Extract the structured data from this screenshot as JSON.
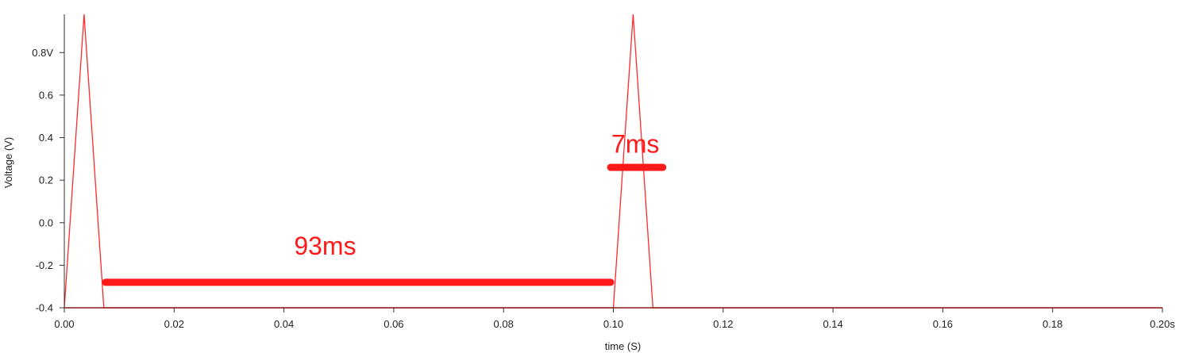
{
  "chart_data": {
    "type": "line",
    "title": "",
    "xlabel": "time (S)",
    "ylabel": "Voltage (V)",
    "xlim": [
      0.0,
      0.2
    ],
    "ylim": [
      -0.4,
      0.98
    ],
    "x_ticks": [
      {
        "value": 0.0,
        "label": "0.00"
      },
      {
        "value": 0.02,
        "label": "0.02"
      },
      {
        "value": 0.04,
        "label": "0.04"
      },
      {
        "value": 0.06,
        "label": "0.06"
      },
      {
        "value": 0.08,
        "label": "0.08"
      },
      {
        "value": 0.1,
        "label": "0.10"
      },
      {
        "value": 0.12,
        "label": "0.12"
      },
      {
        "value": 0.14,
        "label": "0.14"
      },
      {
        "value": 0.16,
        "label": "0.16"
      },
      {
        "value": 0.18,
        "label": "0.18"
      },
      {
        "value": 0.2,
        "label": "0.20s"
      }
    ],
    "y_ticks": [
      {
        "value": -0.4,
        "label": "-0.4"
      },
      {
        "value": -0.2,
        "label": "-0.2"
      },
      {
        "value": 0.0,
        "label": "0.0"
      },
      {
        "value": 0.2,
        "label": "0.2"
      },
      {
        "value": 0.4,
        "label": "0.4"
      },
      {
        "value": 0.6,
        "label": "0.6"
      },
      {
        "value": 0.8,
        "label": "0.8V"
      }
    ],
    "series": [
      {
        "color": "#ff2a2a",
        "x": [
          0.0,
          0.0036,
          0.0072,
          0.1,
          0.1036,
          0.1072,
          0.2
        ],
        "y": [
          -0.4,
          0.98,
          -0.4,
          -0.4,
          0.98,
          -0.4,
          -0.4
        ]
      }
    ],
    "annotations": [
      {
        "text": "93ms",
        "x0": 0.0075,
        "x1": 0.0995,
        "y": -0.28,
        "label_x": 0.0475,
        "label_y": -0.15
      },
      {
        "text": "7ms",
        "x0": 0.0995,
        "x1": 0.109,
        "y": 0.26,
        "label_x": 0.104,
        "label_y": 0.33
      }
    ],
    "grid": false,
    "axis_color": "#8b1a1a",
    "annotation_color": "#ff1a1a"
  }
}
